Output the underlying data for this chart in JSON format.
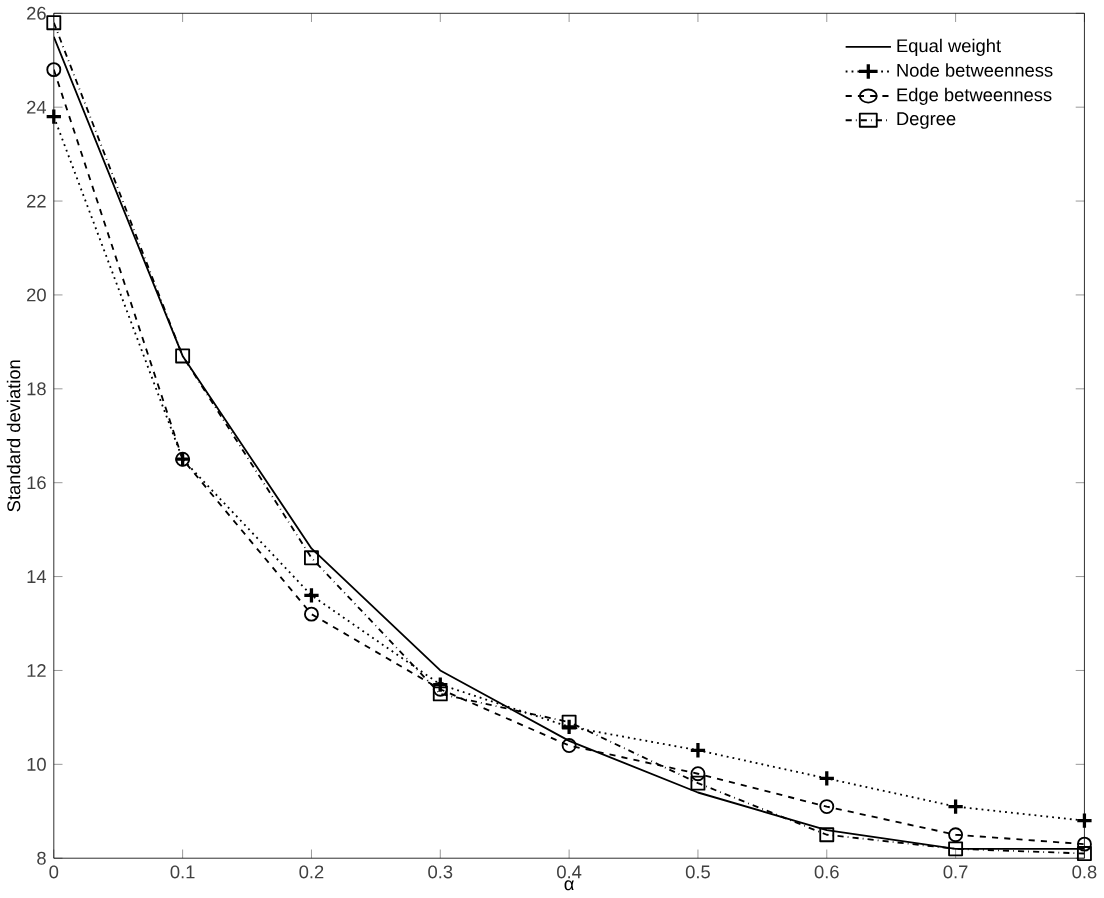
{
  "chart_data": {
    "type": "line",
    "xlabel": "α",
    "ylabel": "Standard deviation",
    "x": [
      0,
      0.1,
      0.2,
      0.3,
      0.4,
      0.5,
      0.6,
      0.7,
      0.8
    ],
    "xlim": [
      0,
      0.8
    ],
    "ylim": [
      8,
      26
    ],
    "xticks": [
      0,
      0.1,
      0.2,
      0.3,
      0.4,
      0.5,
      0.6,
      0.7,
      0.8
    ],
    "yticks": [
      8,
      10,
      12,
      14,
      16,
      18,
      20,
      22,
      24,
      26
    ],
    "legend": "top right",
    "grid": false,
    "series": [
      {
        "name": "Equal weight",
        "color": "#000000",
        "line_style": "solid",
        "marker": "none",
        "values": [
          25.5,
          18.7,
          14.6,
          12.0,
          10.5,
          9.4,
          8.6,
          8.2,
          8.2
        ]
      },
      {
        "name": "Node betweenness",
        "color": "#000000",
        "line_style": "dotted",
        "marker": "cross",
        "values": [
          23.8,
          16.5,
          13.6,
          11.7,
          10.8,
          10.3,
          9.7,
          9.1,
          8.8
        ]
      },
      {
        "name": "Edge betweenness",
        "color": "#000000",
        "line_style": "dashed",
        "marker": "circle",
        "values": [
          24.8,
          16.5,
          13.2,
          11.6,
          10.4,
          9.8,
          9.1,
          8.5,
          8.3
        ]
      },
      {
        "name": "Degree",
        "color": "#000000",
        "line_style": "dashdotted",
        "marker": "square",
        "values": [
          25.8,
          18.7,
          14.4,
          11.5,
          10.9,
          9.6,
          8.5,
          8.2,
          8.1
        ]
      }
    ]
  }
}
